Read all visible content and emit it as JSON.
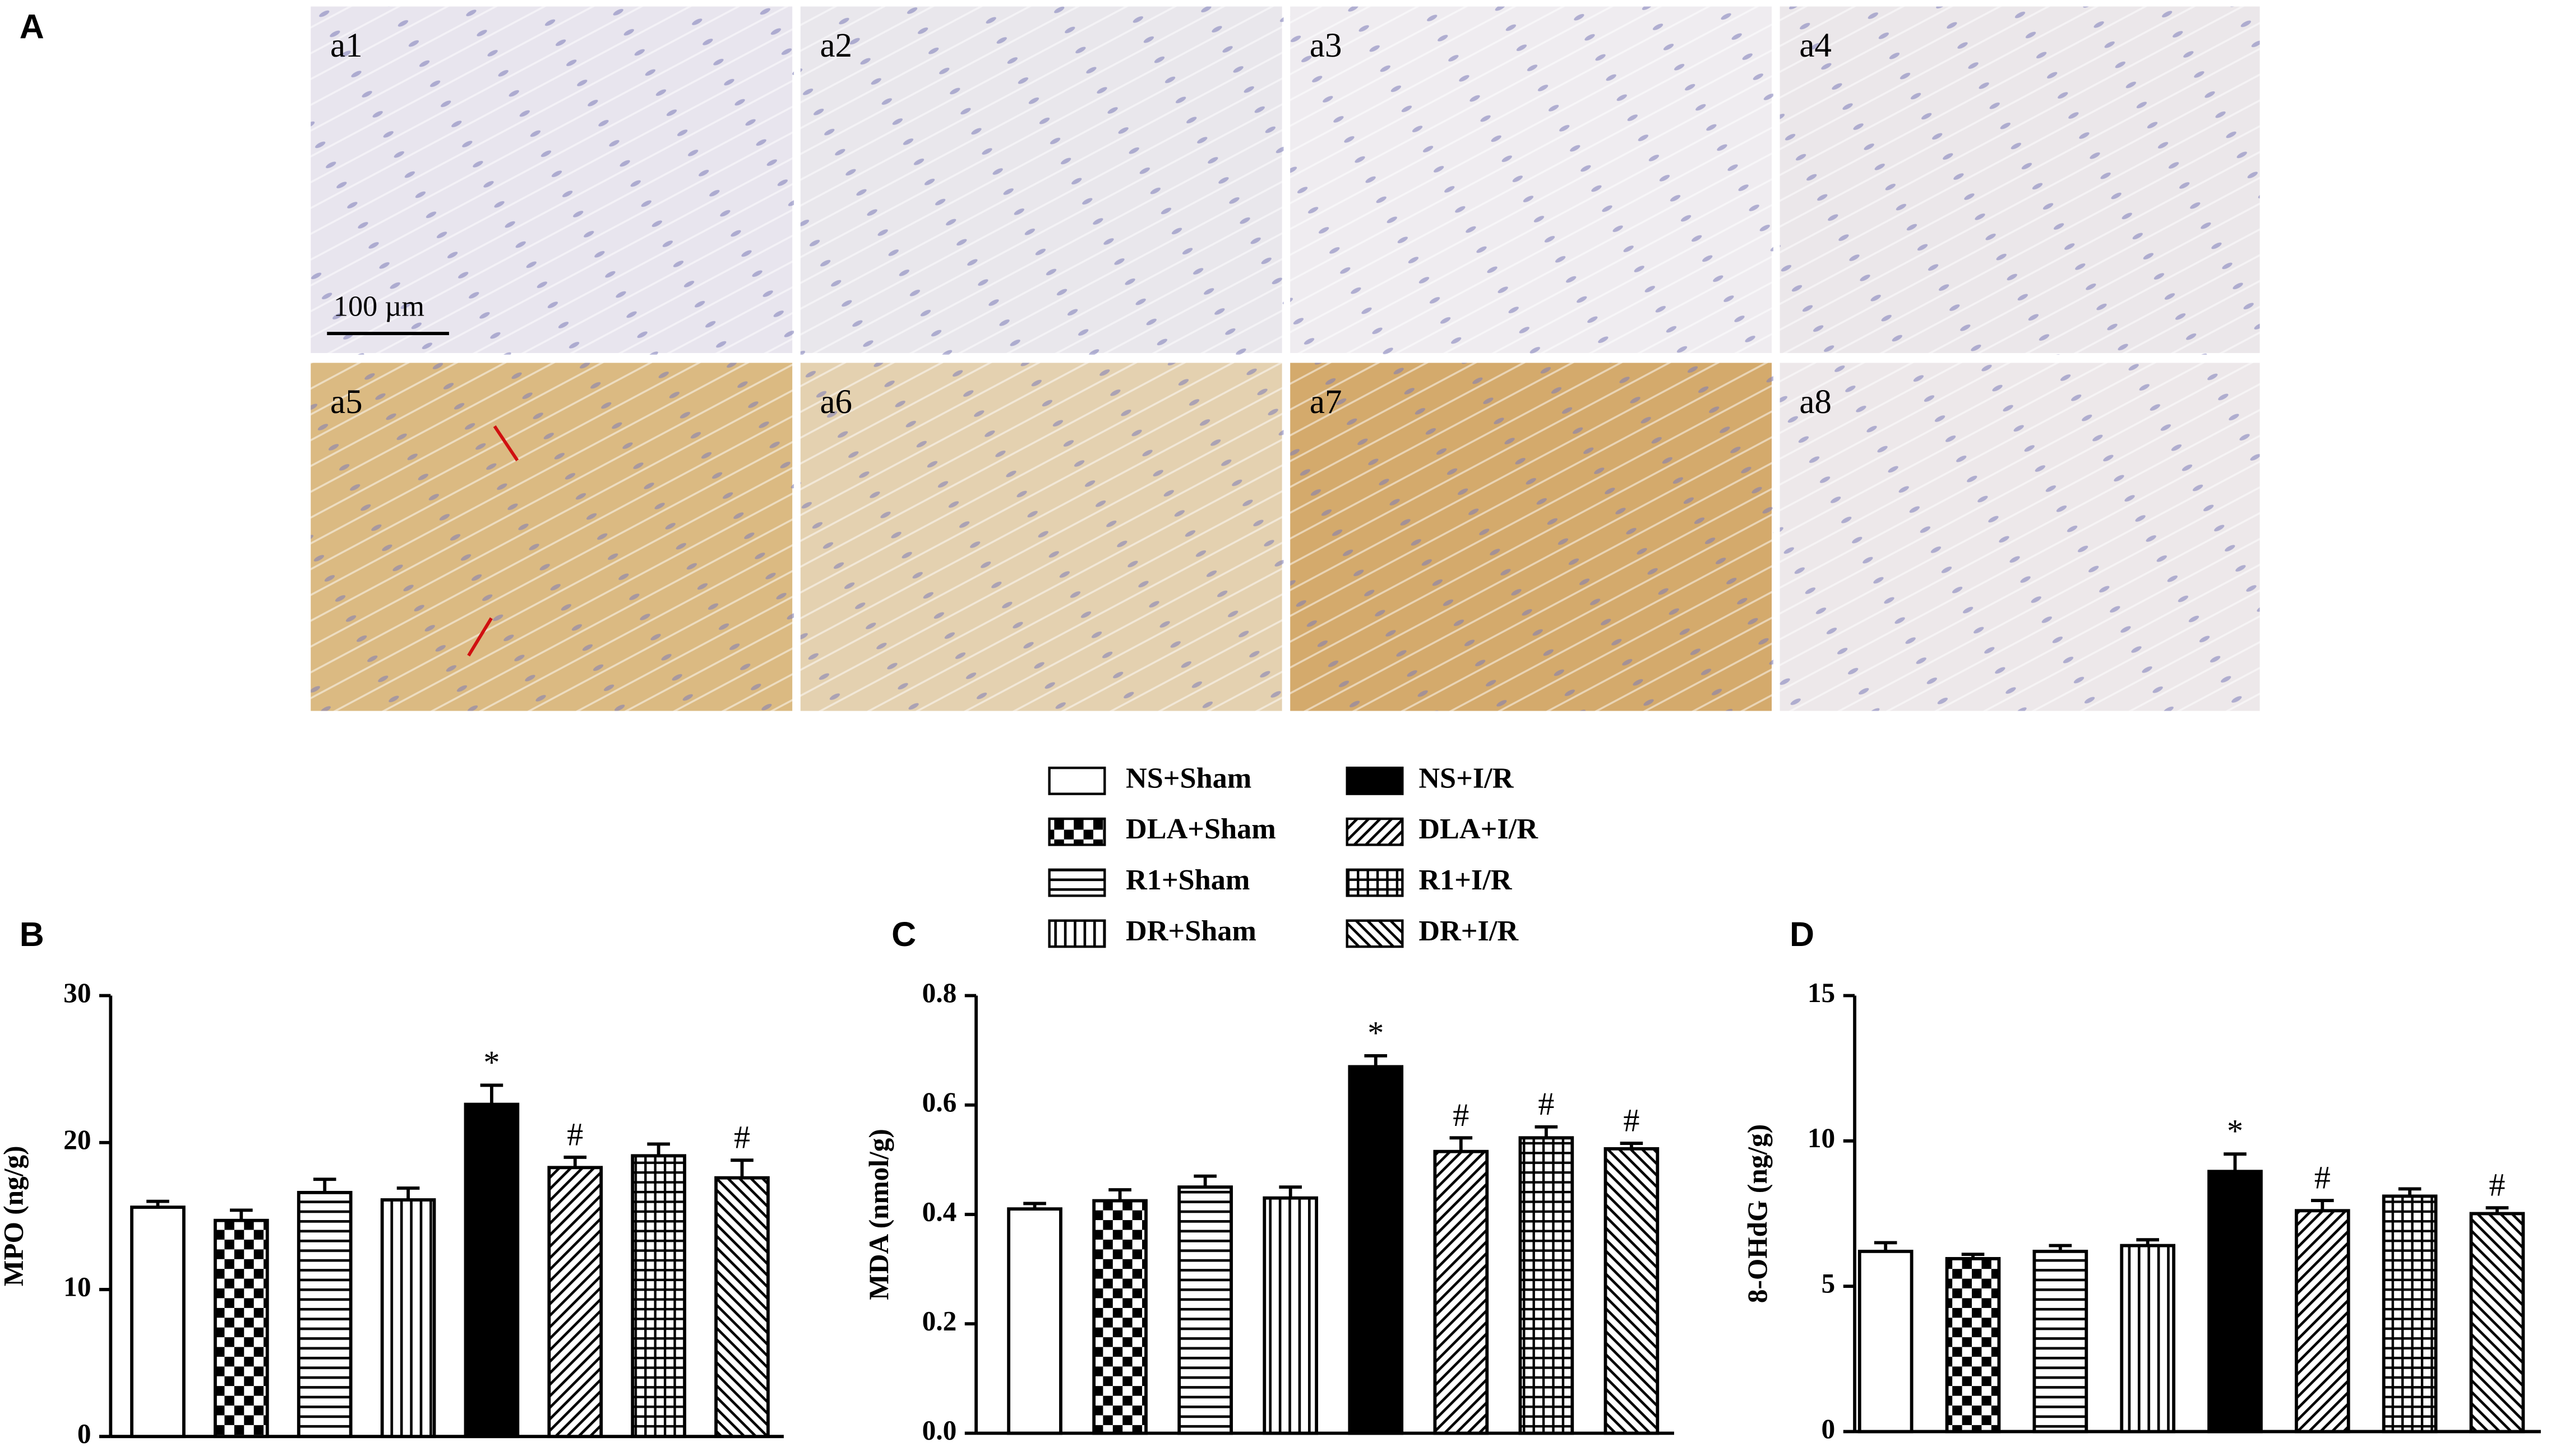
{
  "panel_labels": [
    "A",
    "B",
    "C",
    "D"
  ],
  "images": {
    "labels": [
      "a1",
      "a2",
      "a3",
      "a4",
      "a5",
      "a6",
      "a7",
      "a8"
    ],
    "scale_bar": "100 µm"
  },
  "legend": [
    {
      "name": "NS+Sham",
      "pattern": "white"
    },
    {
      "name": "DLA+Sham",
      "pattern": "checker"
    },
    {
      "name": "R1+Sham",
      "pattern": "hlines"
    },
    {
      "name": "DR+Sham",
      "pattern": "vlines"
    },
    {
      "name": "NS+I/R",
      "pattern": "black"
    },
    {
      "name": "DLA+I/R",
      "pattern": "diag-back"
    },
    {
      "name": "R1+I/R",
      "pattern": "grid"
    },
    {
      "name": "DR+I/R",
      "pattern": "diag-fwd"
    }
  ],
  "chart_data": [
    {
      "type": "bar",
      "ylabel": "MPO (ng/g)",
      "ylim": [
        0,
        30
      ],
      "yticks": [
        0,
        10,
        20,
        30
      ],
      "values": [
        15.6,
        14.7,
        16.6,
        16.1,
        22.6,
        18.3,
        19.1,
        17.6
      ],
      "errors": [
        0.4,
        0.7,
        0.9,
        0.8,
        1.3,
        0.7,
        0.8,
        1.2
      ],
      "annotations": [
        null,
        null,
        null,
        null,
        "*",
        "#",
        null,
        "#"
      ]
    },
    {
      "type": "bar",
      "ylabel": "MDA (nmol/g)",
      "ylim": [
        0,
        0.8
      ],
      "yticks": [
        {
          "value": 0,
          "label": "0.0"
        },
        0.2,
        0.4,
        0.6,
        0.8
      ],
      "values": [
        0.41,
        0.425,
        0.45,
        0.43,
        0.67,
        0.515,
        0.54,
        0.52
      ],
      "errors": [
        0.01,
        0.02,
        0.02,
        0.02,
        0.02,
        0.025,
        0.02,
        0.01
      ],
      "annotations": [
        null,
        null,
        null,
        null,
        "*",
        "#",
        "#",
        "#"
      ]
    },
    {
      "type": "bar",
      "ylabel": "8-OHdG (ng/g)",
      "ylim": [
        0,
        15
      ],
      "yticks": [
        0,
        5,
        10,
        15
      ],
      "values": [
        6.2,
        5.95,
        6.2,
        6.4,
        8.95,
        7.6,
        8.1,
        7.5
      ],
      "errors": [
        0.3,
        0.15,
        0.2,
        0.2,
        0.6,
        0.35,
        0.25,
        0.2
      ],
      "annotations": [
        null,
        null,
        null,
        null,
        "*",
        "#",
        null,
        "#"
      ]
    }
  ]
}
